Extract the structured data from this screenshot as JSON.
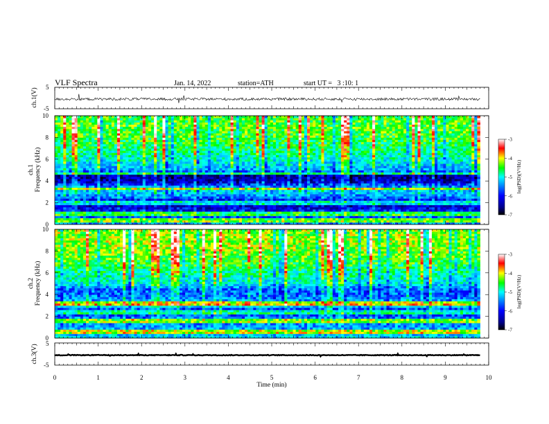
{
  "header": {
    "title": "VLF Spectra",
    "date": "Jan. 14, 2022",
    "station": "station=ATH",
    "start": "start UT =   3 :10: 1"
  },
  "colors": {
    "colormap": [
      "#000000",
      "#00008c",
      "#0000ff",
      "#0096ff",
      "#00ffff",
      "#00ff00",
      "#ffff00",
      "#ff0000",
      "#ffffff"
    ],
    "trace": "#000000",
    "axis": "#000000"
  },
  "chart_data": [
    {
      "type": "line",
      "panel": "ch1-waveform",
      "ylabel": "ch.1(V)",
      "yticks": [
        "5",
        "-5"
      ],
      "ylim": [
        -5,
        5
      ],
      "x_range_min": [
        0,
        9.8
      ],
      "baseline_v": -0.5,
      "noise_amplitude_v": 0.6
    },
    {
      "type": "heatmap",
      "panel": "ch1-spectrogram",
      "ylabel": "ch.1\nFrequency (kHz)",
      "yticks": [
        "0",
        "2",
        "4",
        "6",
        "8",
        "10"
      ],
      "ylim_khz": [
        0,
        10
      ],
      "x_range_min": [
        0,
        9.8
      ],
      "colorbar_label": "log(PSD)(V²/Hz)",
      "colorbar_ticks": [
        "-3",
        "-4",
        "-5",
        "-6",
        "-7"
      ],
      "colorbar_range": [
        -7,
        -3
      ],
      "band_profile_khz_logpsd": [
        [
          0,
          -5.4
        ],
        [
          0.5,
          -5.6
        ],
        [
          1,
          -5.8
        ],
        [
          1.5,
          -6.1
        ],
        [
          2,
          -6.4
        ],
        [
          2.5,
          -5.6
        ],
        [
          3,
          -5.2
        ],
        [
          3.5,
          -5.5
        ],
        [
          4,
          -6.3
        ],
        [
          4.5,
          -6.4
        ],
        [
          5,
          -5.4
        ],
        [
          6,
          -5.0
        ],
        [
          7,
          -4.7
        ],
        [
          8,
          -4.5
        ],
        [
          9,
          -4.4
        ],
        [
          10,
          -4.5
        ]
      ],
      "spectral_lines_khz": [
        0.4,
        1.0,
        2.0,
        3.3,
        4.7
      ]
    },
    {
      "type": "heatmap",
      "panel": "ch2-spectrogram",
      "ylabel": "ch.2\nFrequency (kHz)",
      "yticks": [
        "0",
        "2",
        "4",
        "6",
        "8",
        "10"
      ],
      "ylim_khz": [
        0,
        10
      ],
      "x_range_min": [
        0,
        9.8
      ],
      "colorbar_label": "log(PSD)(V²/Hz)",
      "colorbar_ticks": [
        "-3",
        "-4",
        "-5",
        "-6",
        "-7"
      ],
      "colorbar_range": [
        -7,
        -3
      ],
      "band_profile_khz_logpsd": [
        [
          0,
          -5.2
        ],
        [
          0.5,
          -5.3
        ],
        [
          1,
          -5.4
        ],
        [
          1.5,
          -5.5
        ],
        [
          2,
          -5.6
        ],
        [
          2.5,
          -6.2
        ],
        [
          3,
          -5.0
        ],
        [
          3.5,
          -5.4
        ],
        [
          4,
          -5.6
        ],
        [
          4.5,
          -5.6
        ],
        [
          5,
          -5.1
        ],
        [
          6,
          -4.8
        ],
        [
          7,
          -4.5
        ],
        [
          8,
          -4.3
        ],
        [
          9,
          -4.2
        ],
        [
          10,
          -4.3
        ]
      ],
      "spectral_lines_khz": [
        0.6,
        1.6,
        2.4,
        3.2
      ]
    },
    {
      "type": "line",
      "panel": "ch3-waveform",
      "ylabel": "ch.3(V)",
      "yticks": [
        "5",
        "-5"
      ],
      "ylim": [
        -5,
        5
      ],
      "x_range_min": [
        0,
        9.8
      ],
      "baseline_v": -0.5,
      "noise_amplitude_v": 0.15
    }
  ],
  "xaxis": {
    "label": "Time (min)",
    "ticks": [
      "0",
      "1",
      "2",
      "3",
      "4",
      "5",
      "6",
      "7",
      "8",
      "9",
      "10"
    ],
    "range": [
      0,
      10
    ]
  }
}
